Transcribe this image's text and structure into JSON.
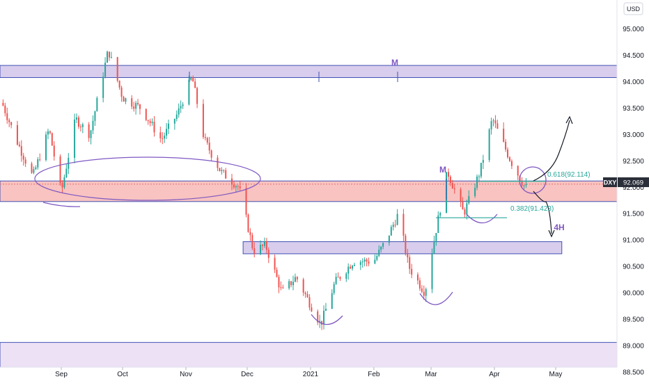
{
  "chart_data": {
    "type": "candlestick",
    "symbol": "DXY",
    "currency": "USD",
    "last_price": "92.069",
    "y_ticks": [
      "95.000",
      "94.500",
      "94.000",
      "93.500",
      "93.000",
      "92.500",
      "92.000",
      "91.500",
      "91.000",
      "90.500",
      "90.000",
      "89.500",
      "89.000",
      "88.500"
    ],
    "ylim": [
      88.3,
      95.55
    ],
    "x_ticks": [
      "Sep",
      "Oct",
      "Nov",
      "Dec",
      "2021",
      "Feb",
      "Mar",
      "Apr",
      "May"
    ],
    "x_tick_dates": [
      "2020-09-01",
      "2020-10-01",
      "2020-11-01",
      "2020-12-01",
      "2021-01-01",
      "2021-02-01",
      "2021-03-01",
      "2021-04-01",
      "2021-05-01"
    ],
    "xlim": [
      "2020-08-02",
      "2021-05-31"
    ],
    "candle_interval": "daily",
    "data_end": "2021-04-16",
    "price_path": [
      [
        "2020-08-03",
        93.6
      ],
      [
        "2020-08-10",
        92.9
      ],
      [
        "2020-08-18",
        92.2
      ],
      [
        "2020-08-26",
        93.1
      ],
      [
        "2020-09-01",
        91.9
      ],
      [
        "2020-09-08",
        93.3
      ],
      [
        "2020-09-15",
        93.0
      ],
      [
        "2020-09-24",
        94.6
      ],
      [
        "2020-10-01",
        93.7
      ],
      [
        "2020-10-10",
        93.5
      ],
      [
        "2020-10-20",
        92.9
      ],
      [
        "2020-10-28",
        93.4
      ],
      [
        "2020-11-04",
        94.1
      ],
      [
        "2020-11-10",
        92.9
      ],
      [
        "2020-11-18",
        92.3
      ],
      [
        "2020-11-27",
        92.0
      ],
      [
        "2020-12-04",
        90.8
      ],
      [
        "2020-12-10",
        90.9
      ],
      [
        "2020-12-18",
        90.0
      ],
      [
        "2020-12-25",
        90.3
      ],
      [
        "2021-01-06",
        89.4
      ],
      [
        "2021-01-13",
        90.2
      ],
      [
        "2021-01-22",
        90.6
      ],
      [
        "2021-02-01",
        90.6
      ],
      [
        "2021-02-07",
        91.0
      ],
      [
        "2021-02-13",
        91.5
      ],
      [
        "2021-02-18",
        90.5
      ],
      [
        "2021-02-26",
        90.0
      ],
      [
        "2021-03-01",
        90.7
      ],
      [
        "2021-03-09",
        92.3
      ],
      [
        "2021-03-17",
        91.5
      ],
      [
        "2021-03-25",
        92.3
      ],
      [
        "2021-03-31",
        93.3
      ],
      [
        "2021-04-09",
        92.5
      ],
      [
        "2021-04-16",
        92.0
      ]
    ],
    "zones": [
      {
        "type": "resistance",
        "label": "M",
        "from": 94.08,
        "to": 94.31,
        "start": "2020-08-02",
        "end": "2021-05-31",
        "color": "#d1c4e9"
      },
      {
        "type": "support-resistance",
        "label": "",
        "from": 91.73,
        "to": 92.12,
        "start": "2020-08-02",
        "end": "2021-05-31",
        "color": "#f7b9b5"
      },
      {
        "type": "support",
        "label": "4H",
        "from": 90.74,
        "to": 90.97,
        "start": "2020-11-29",
        "end": "2021-05-04",
        "color": "#d1c4e9"
      },
      {
        "type": "support",
        "label": "",
        "from": 87.9,
        "to": 89.06,
        "start": "2020-08-02",
        "end": "2021-05-31",
        "color": "#eadcf5"
      }
    ],
    "fib_levels": [
      {
        "label": "0.618(92.114)",
        "value": 92.114,
        "color": "#26a69a"
      },
      {
        "label": "0.382(91.423)",
        "value": 91.423,
        "color": "#26a69a"
      }
    ],
    "annotations": [
      "M",
      "M",
      "4H"
    ],
    "colors": {
      "up": "#26a69a",
      "down": "#ef5350",
      "purple": "#7e57c2",
      "fib": "#26a69a",
      "price_label": "#2a2e39"
    }
  }
}
